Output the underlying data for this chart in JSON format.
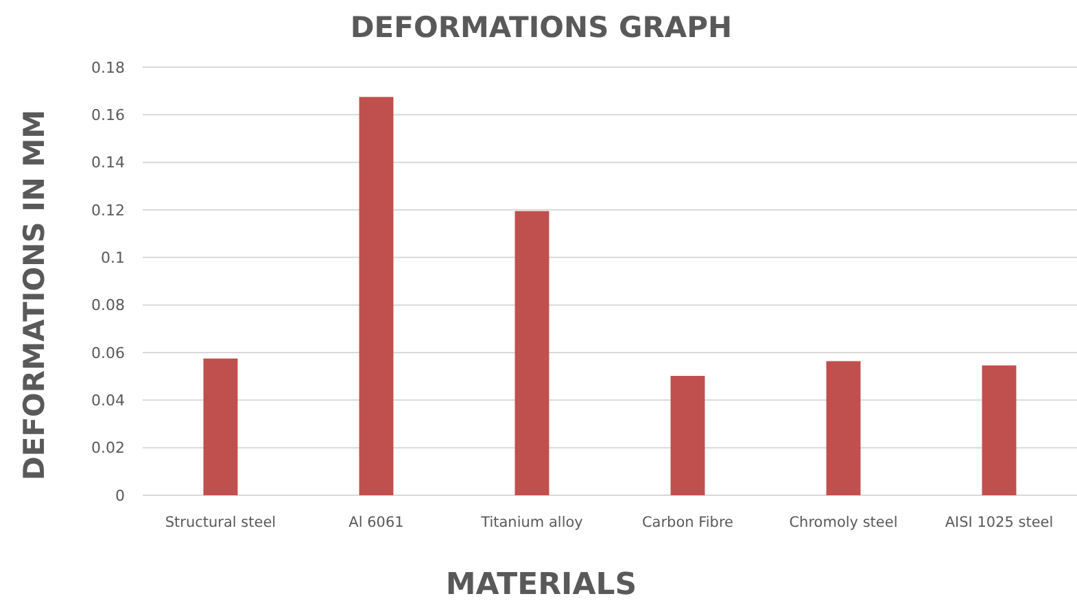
{
  "chart_data": {
    "type": "bar",
    "title": "DEFORMATIONS GRAPH",
    "xlabel": "MATERIALS",
    "ylabel": "DEFORMATIONS IN MM",
    "categories": [
      "Structural steel",
      "Al 6061",
      "Titanium alloy",
      "Carbon Fibre",
      "Chromoly steel",
      "AISI 1025 steel"
    ],
    "values": [
      0.0575,
      0.1675,
      0.1195,
      0.0502,
      0.0564,
      0.0546
    ],
    "color": "#c0504d",
    "ylim": [
      0,
      0.18
    ],
    "yticks": [
      0,
      0.02,
      0.04,
      0.06,
      0.08,
      0.1,
      0.12,
      0.14,
      0.16,
      0.18
    ],
    "grid": true
  }
}
